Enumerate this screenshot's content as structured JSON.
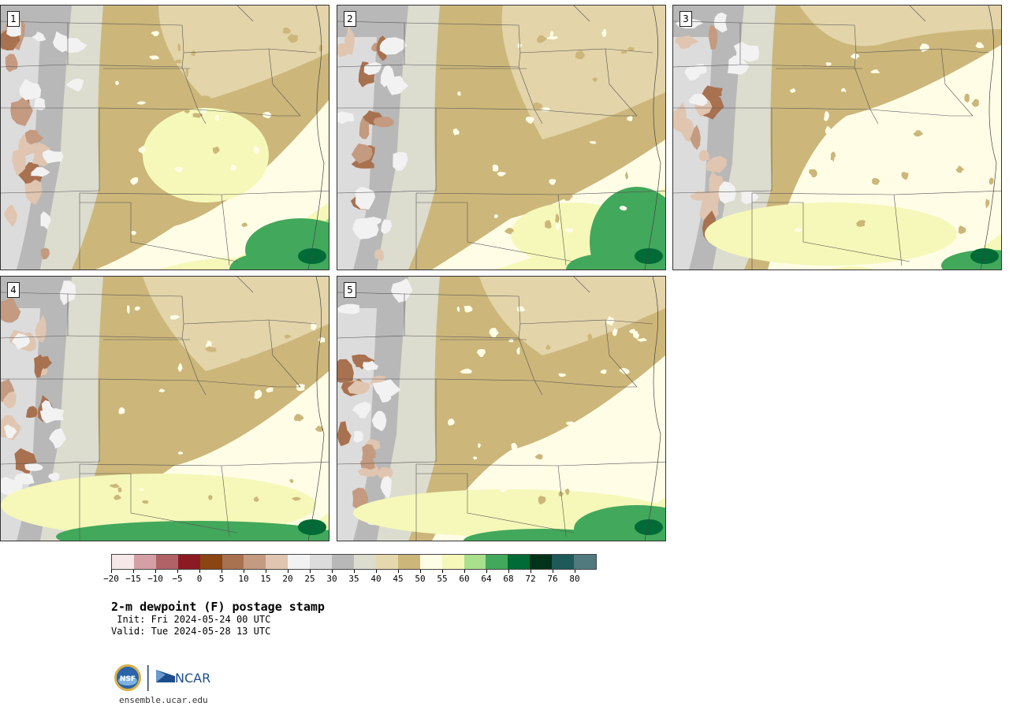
{
  "panels": [
    {
      "number": "1",
      "variant": 0
    },
    {
      "number": "2",
      "variant": 1
    },
    {
      "number": "3",
      "variant": 2
    },
    {
      "number": "4",
      "variant": 3
    },
    {
      "number": "5",
      "variant": 4
    }
  ],
  "colorbar": {
    "colors": [
      "#f6e8e8",
      "#d4a0a6",
      "#b06266",
      "#8b1a22",
      "#8b4513",
      "#a8714f",
      "#c49a80",
      "#e0c5b0",
      "#f2f2f2",
      "#dcdcdc",
      "#b8b8b8",
      "#dcdccf",
      "#e5d7ae",
      "#ccb67a",
      "#fffde6",
      "#f5f8b8",
      "#a8e08c",
      "#42a85b",
      "#006b36",
      "#00331a",
      "#1e5a5a",
      "#507a7e"
    ],
    "tick_labels": [
      "−20",
      "−15",
      "−10",
      "−5",
      "0",
      "5",
      "10",
      "15",
      "20",
      "25",
      "30",
      "35",
      "40",
      "45",
      "50",
      "55",
      "60",
      "64",
      "68",
      "72",
      "76",
      "80"
    ]
  },
  "title": "2-m dewpoint (F) postage stamp",
  "init": " Init: Fri 2024-05-24 00 UTC",
  "valid": "Valid: Tue 2024-05-28 13 UTC",
  "logos": {
    "nsf": "NSF",
    "ncar": "NCAR"
  },
  "website": "ensemble.ucar.edu"
}
